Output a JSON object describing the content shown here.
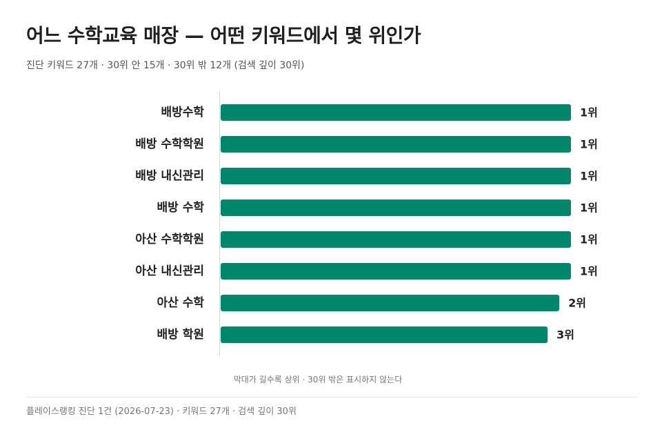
{
  "header": {
    "title": "어느 수학교육 매장 — 어떤 키워드에서 몇 위인가",
    "subtitle": "진단 키워드 27개 · 30위 안 15개 · 30위 밖 12개 (검색 깊이 30위)"
  },
  "chart_data": {
    "type": "bar",
    "orientation": "horizontal",
    "categories": [
      "배방수학",
      "배방 수학학원",
      "배방 내신관리",
      "배방 수학",
      "아산 수학학원",
      "아산 내신관리",
      "아산 수학",
      "배방 학원"
    ],
    "values": [
      1,
      1,
      1,
      1,
      1,
      1,
      2,
      3
    ],
    "value_labels": [
      "1위",
      "1위",
      "1위",
      "1위",
      "1위",
      "1위",
      "2위",
      "3위"
    ],
    "search_depth": 30,
    "bar_color": "#00876a",
    "grid": false
  },
  "note": "막대가 길수록 상위 · 30위 밖은 표시하지 않는다",
  "footer": "플레이스랭킹 진단 1건 (2026-07-23) · 키워드 27개 · 검색 깊이 30위"
}
